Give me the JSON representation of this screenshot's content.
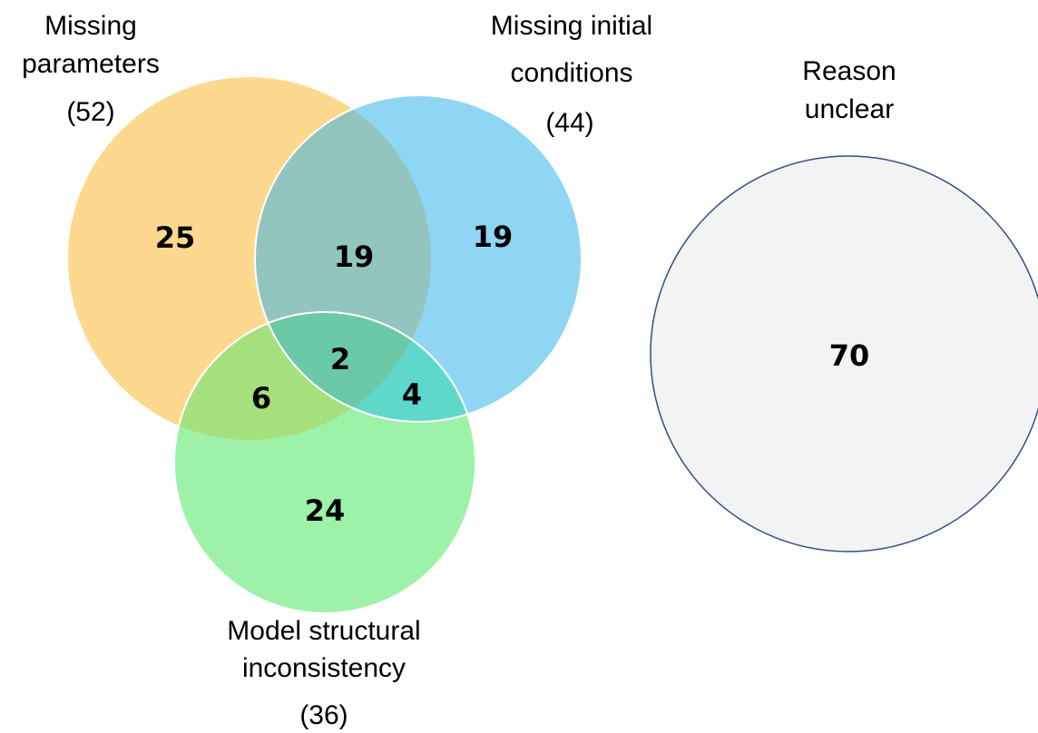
{
  "sets": [
    {
      "label": [
        "Missing",
        "parameters"
      ],
      "total": "(52)"
    },
    {
      "label": [
        "Missing initial",
        "conditions"
      ],
      "total": "(44)"
    },
    {
      "label": [
        "Model structural",
        "inconsistency"
      ],
      "total": "(36)"
    },
    {
      "label": [
        "Reason",
        "unclear"
      ]
    }
  ],
  "regions": {
    "parameters_only": 25,
    "parameters_initial": 19,
    "initial_only": 19,
    "all_three": 2,
    "parameters_structural": 6,
    "initial_structural": 4,
    "structural_only": 24,
    "unclear": 70
  }
}
